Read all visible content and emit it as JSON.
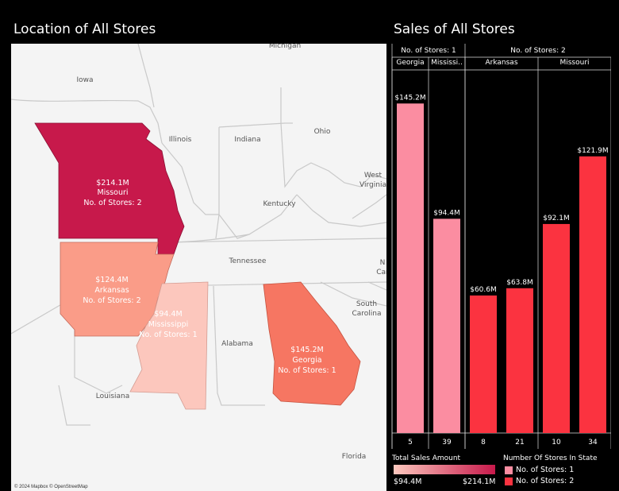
{
  "titles": {
    "map": "Location of All Stores",
    "chart": "Sales of All Stores"
  },
  "map": {
    "attribution": "© 2024 Mapbox © OpenStreetMap",
    "background_labels": [
      "Michigan",
      "Iowa",
      "Illinois",
      "Indiana",
      "Ohio",
      "West Virginia",
      "Kentucky",
      "Tennessee",
      "North Carolina",
      "South Carolina",
      "Alabama",
      "Louisiana",
      "Florida"
    ],
    "states": [
      {
        "name": "Missouri",
        "sales": "$214.1M",
        "stores": "No. of Stores: 2",
        "color": "#c7194b"
      },
      {
        "name": "Arkansas",
        "sales": "$124.4M",
        "stores": "No. of Stores: 2",
        "color": "#fa9c88"
      },
      {
        "name": "Mississippi",
        "sales": "$94.4M",
        "stores": "No. of Stores: 1",
        "color": "#fcc7bd"
      },
      {
        "name": "Georgia",
        "sales": "$145.2M",
        "stores": "No. of Stores: 1",
        "color": "#f67662"
      }
    ]
  },
  "chart_data": {
    "type": "bar",
    "title": "Sales of All Stores",
    "ylim": [
      0,
      160
    ],
    "groups": [
      {
        "header": "No. of Stores: 1",
        "states": [
          {
            "state": "Georgia",
            "bars": [
              {
                "store": "5",
                "value": 145.2,
                "label": "$145.2M"
              }
            ]
          },
          {
            "state": "Mississi..",
            "bars": [
              {
                "store": "39",
                "value": 94.4,
                "label": "$94.4M"
              }
            ]
          }
        ]
      },
      {
        "header": "No. of Stores: 2",
        "states": [
          {
            "state": "Arkansas",
            "bars": [
              {
                "store": "8",
                "value": 60.6,
                "label": "$60.6M"
              },
              {
                "store": "21",
                "value": 63.8,
                "label": "$63.8M"
              }
            ]
          },
          {
            "state": "Missouri",
            "bars": [
              {
                "store": "10",
                "value": 92.1,
                "label": "$92.1M"
              },
              {
                "store": "34",
                "value": 121.9,
                "label": "$121.9M"
              }
            ]
          }
        ]
      }
    ],
    "colors": {
      "stores_1": "#fb8da1",
      "stores_2": "#fb3340"
    }
  },
  "legend": {
    "sales_title": "Total Sales Amount",
    "sales_min": "$94.4M",
    "sales_max": "$214.1M",
    "gradient_from": "#fcc7bd",
    "gradient_to": "#c7194b",
    "stores_title": "Number Of Stores In State",
    "stores_items": [
      {
        "label": "No. of Stores: 1",
        "color": "#fb8da1"
      },
      {
        "label": "No. of Stores: 2",
        "color": "#fb3340"
      }
    ]
  }
}
